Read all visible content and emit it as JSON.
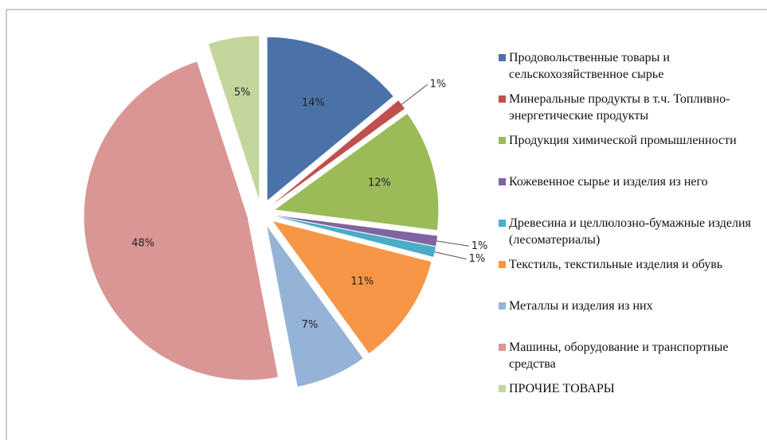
{
  "chart_data": {
    "type": "pie",
    "categories": [
      "Продовольственные товары и сельскохозяйственное сырье",
      "Минеральные продукты в т.ч. Топливно-энергетические продукты",
      "Продукция химической промышленности",
      "Кожевенное сырье и изделия из него",
      "Древесина и целлюлозно-бумажные изделия (лесоматериалы)",
      "Текстиль, текстильные изделия и обувь",
      "Металлы и изделия из них",
      "Машины, оборудование и транспортные средства",
      "ПРОЧИЕ ТОВАРЫ"
    ],
    "values": [
      14,
      1,
      12,
      1,
      1,
      11,
      7,
      48,
      5
    ],
    "value_labels": [
      "14%",
      "1%",
      "12%",
      "1%",
      "1%",
      "11%",
      "7%",
      "48%",
      "5%"
    ],
    "colors": [
      "#4a72a8",
      "#c0504d",
      "#9bbb59",
      "#8064a2",
      "#4bacc6",
      "#f79646",
      "#95b3d7",
      "#d99694",
      "#c3d69b"
    ],
    "legend": "right"
  }
}
